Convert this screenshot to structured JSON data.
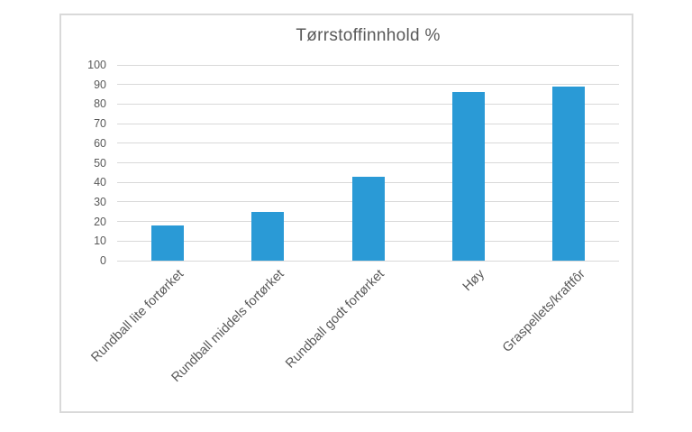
{
  "chart_data": {
    "type": "bar",
    "title": "Tørrstoffinnhold %",
    "categories": [
      "Rundball lite fortørket",
      "Rundball middels fortørket",
      "Rundball godt fortørket",
      "Høy",
      "Graspellets/kraftfôr"
    ],
    "values": [
      18,
      25,
      43,
      86,
      89
    ],
    "xlabel": "",
    "ylabel": "",
    "ylim": [
      0,
      100
    ],
    "ytick_step": 10,
    "grid": true,
    "legend_position": "none",
    "category_label_rotation_deg": 45
  },
  "colors": {
    "bar": "#2a9ad6",
    "gridline": "#d9d9d9",
    "axis_text": "#595959",
    "title_text": "#595959",
    "frame_border": "#d9d9d9",
    "background": "#ffffff"
  }
}
